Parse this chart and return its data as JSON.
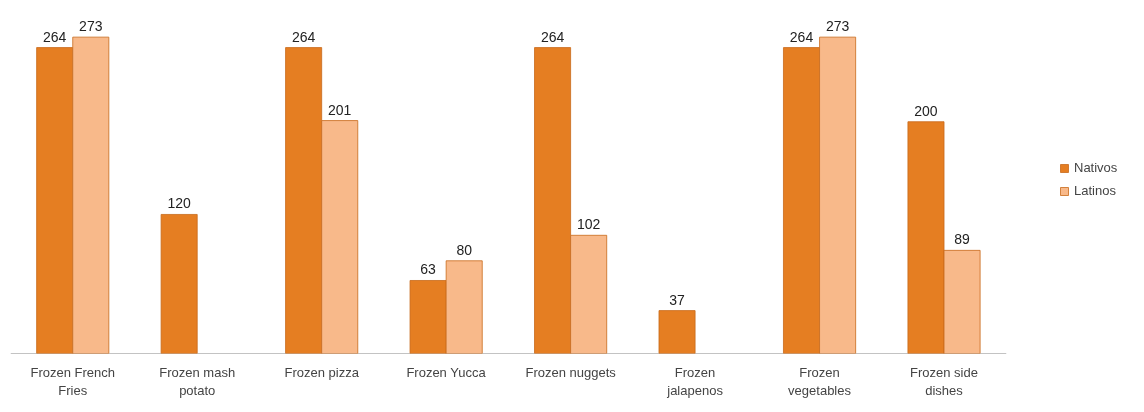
{
  "chart_data": {
    "type": "bar",
    "categories": [
      "Frozen French Fries",
      "Frozen mash potato",
      "Frozen pizza",
      "Frozen Yucca",
      "Frozen nuggets",
      "Frozen jalapenos",
      "Frozen vegetables",
      "Frozen side dishes"
    ],
    "series": [
      {
        "name": "Nativos",
        "color": "#e57e22",
        "values": [
          264,
          120,
          264,
          63,
          264,
          37,
          264,
          200
        ]
      },
      {
        "name": "Latinos",
        "color": "#f8b98a",
        "values": [
          273,
          null,
          201,
          80,
          102,
          null,
          273,
          89
        ]
      }
    ],
    "data_labels": true,
    "legend": "right",
    "grid": false,
    "tick_labels": "x"
  }
}
